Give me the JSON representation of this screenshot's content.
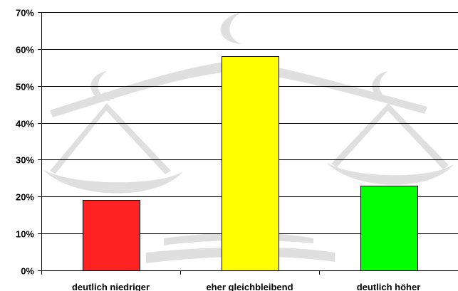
{
  "chart_data": {
    "type": "bar",
    "categories": [
      "deutlich niedriger",
      "eher gleichbleibend",
      "deutlich höher"
    ],
    "values": [
      19,
      58,
      23
    ],
    "value_format": "percent",
    "ylim": [
      0,
      70
    ],
    "yticks": [
      0,
      10,
      20,
      30,
      40,
      50,
      60,
      70
    ],
    "ytick_labels": [
      "0%",
      "10%",
      "20%",
      "30%",
      "40%",
      "50%",
      "60%",
      "70%"
    ],
    "bar_colors": [
      "#ff2222",
      "#ffff00",
      "#00ff00"
    ],
    "grid": true,
    "background_graphic": "scales-of-justice watermark",
    "title": "",
    "xlabel": "",
    "ylabel": ""
  }
}
